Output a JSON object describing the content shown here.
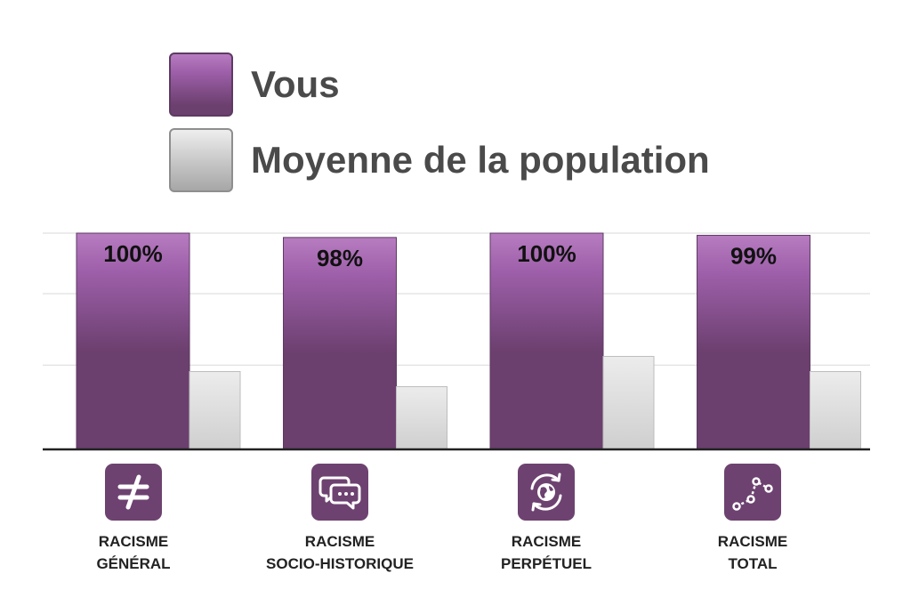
{
  "legend": {
    "you_label": "Vous",
    "population_label": "Moyenne de la population"
  },
  "colors": {
    "you": "#6b3f6e",
    "you_top": "#b77cc0",
    "population": "#e0e0e0",
    "icon_bg": "#6d4270"
  },
  "chart_data": {
    "type": "bar",
    "categories": [
      "RACISME GÉNÉRAL",
      "RACISME SOCIO-HISTORIQUE",
      "RACISME PERPÉTUEL",
      "RACISME TOTAL"
    ],
    "series": [
      {
        "name": "Vous",
        "values": [
          100,
          98,
          100,
          99
        ],
        "data_labels": [
          "100%",
          "98%",
          "100%",
          "99%"
        ]
      },
      {
        "name": "Moyenne de la population",
        "values": [
          36,
          29,
          43,
          36
        ]
      }
    ],
    "ylim": [
      0,
      100
    ],
    "grid": true,
    "legend_position": "top"
  },
  "categories": [
    {
      "line1": "RACISME",
      "line2": "GÉNÉRAL",
      "icon": "not-equal-icon"
    },
    {
      "line1": "RACISME",
      "line2": "SOCIO-HISTORIQUE",
      "icon": "chat-bubbles-icon"
    },
    {
      "line1": "RACISME",
      "line2": "PERPÉTUEL",
      "icon": "globe-cycle-icon"
    },
    {
      "line1": "RACISME",
      "line2": "TOTAL",
      "icon": "line-graph-icon"
    }
  ]
}
